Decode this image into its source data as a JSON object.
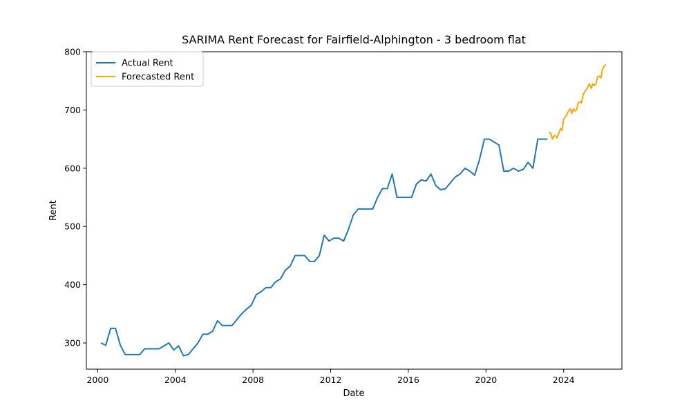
{
  "chart_data": {
    "type": "line",
    "title": "SARIMA Rent Forecast for Fairfield-Alphington - 3 bedroom flat",
    "xlabel": "Date",
    "ylabel": "Rent",
    "xlim": [
      "1999-06",
      "2027-01"
    ],
    "ylim": [
      255,
      800
    ],
    "xticks": [
      "2000",
      "2004",
      "2008",
      "2012",
      "2016",
      "2020",
      "2024"
    ],
    "yticks": [
      300,
      400,
      500,
      600,
      700,
      800
    ],
    "grid": false,
    "legend_position": "upper-left",
    "series": [
      {
        "name": "Actual Rent",
        "color": "#1f77b4",
        "points": [
          [
            "2000-03",
            300
          ],
          [
            "2000-06",
            296
          ],
          [
            "2000-09",
            325
          ],
          [
            "2000-12",
            325
          ],
          [
            "2001-03",
            296
          ],
          [
            "2001-06",
            280
          ],
          [
            "2001-09",
            280
          ],
          [
            "2001-12",
            280
          ],
          [
            "2002-03",
            280
          ],
          [
            "2002-06",
            290
          ],
          [
            "2002-09",
            290
          ],
          [
            "2002-12",
            290
          ],
          [
            "2003-03",
            290
          ],
          [
            "2003-06",
            295
          ],
          [
            "2003-09",
            300
          ],
          [
            "2003-12",
            288
          ],
          [
            "2004-03",
            295
          ],
          [
            "2004-06",
            278
          ],
          [
            "2004-09",
            280
          ],
          [
            "2004-12",
            290
          ],
          [
            "2005-03",
            300
          ],
          [
            "2005-06",
            315
          ],
          [
            "2005-09",
            315
          ],
          [
            "2005-12",
            320
          ],
          [
            "2006-03",
            338
          ],
          [
            "2006-06",
            330
          ],
          [
            "2006-09",
            330
          ],
          [
            "2006-12",
            330
          ],
          [
            "2007-03",
            340
          ],
          [
            "2007-06",
            350
          ],
          [
            "2007-09",
            358
          ],
          [
            "2007-12",
            365
          ],
          [
            "2008-03",
            383
          ],
          [
            "2008-06",
            388
          ],
          [
            "2008-09",
            395
          ],
          [
            "2008-12",
            395
          ],
          [
            "2009-03",
            405
          ],
          [
            "2009-06",
            410
          ],
          [
            "2009-09",
            425
          ],
          [
            "2009-12",
            432
          ],
          [
            "2010-03",
            450
          ],
          [
            "2010-06",
            450
          ],
          [
            "2010-09",
            450
          ],
          [
            "2010-12",
            440
          ],
          [
            "2011-03",
            440
          ],
          [
            "2011-06",
            450
          ],
          [
            "2011-09",
            485
          ],
          [
            "2011-12",
            475
          ],
          [
            "2012-03",
            480
          ],
          [
            "2012-06",
            480
          ],
          [
            "2012-09",
            475
          ],
          [
            "2012-12",
            495
          ],
          [
            "2013-03",
            520
          ],
          [
            "2013-06",
            530
          ],
          [
            "2013-09",
            530
          ],
          [
            "2013-12",
            530
          ],
          [
            "2014-03",
            530
          ],
          [
            "2014-06",
            550
          ],
          [
            "2014-09",
            565
          ],
          [
            "2014-12",
            565
          ],
          [
            "2015-03",
            590
          ],
          [
            "2015-06",
            550
          ],
          [
            "2015-09",
            550
          ],
          [
            "2015-12",
            550
          ],
          [
            "2016-03",
            550
          ],
          [
            "2016-06",
            573
          ],
          [
            "2016-09",
            580
          ],
          [
            "2016-12",
            578
          ],
          [
            "2017-03",
            590
          ],
          [
            "2017-06",
            570
          ],
          [
            "2017-09",
            563
          ],
          [
            "2017-12",
            565
          ],
          [
            "2018-03",
            575
          ],
          [
            "2018-06",
            585
          ],
          [
            "2018-09",
            590
          ],
          [
            "2018-12",
            600
          ],
          [
            "2019-03",
            595
          ],
          [
            "2019-06",
            588
          ],
          [
            "2019-09",
            615
          ],
          [
            "2019-12",
            650
          ],
          [
            "2020-03",
            650
          ],
          [
            "2020-06",
            645
          ],
          [
            "2020-09",
            640
          ],
          [
            "2020-12",
            595
          ],
          [
            "2021-03",
            595
          ],
          [
            "2021-06",
            600
          ],
          [
            "2021-09",
            595
          ],
          [
            "2021-12",
            598
          ],
          [
            "2022-03",
            610
          ],
          [
            "2022-06",
            600
          ],
          [
            "2022-09",
            650
          ],
          [
            "2022-12",
            650
          ],
          [
            "2023-03",
            650
          ]
        ]
      },
      {
        "name": "Forecasted Rent",
        "color": "#ffa500",
        "points": [
          [
            "2023-04",
            662
          ],
          [
            "2023-05",
            660
          ],
          [
            "2023-06",
            650
          ],
          [
            "2023-07",
            655
          ],
          [
            "2023-08",
            656
          ],
          [
            "2023-09",
            652
          ],
          [
            "2023-10",
            660
          ],
          [
            "2023-11",
            668
          ],
          [
            "2023-12",
            665
          ],
          [
            "2024-01",
            684
          ],
          [
            "2024-02",
            688
          ],
          [
            "2024-03",
            692
          ],
          [
            "2024-04",
            698
          ],
          [
            "2024-05",
            702
          ],
          [
            "2024-06",
            694
          ],
          [
            "2024-07",
            702
          ],
          [
            "2024-08",
            698
          ],
          [
            "2024-09",
            700
          ],
          [
            "2024-10",
            712
          ],
          [
            "2024-11",
            714
          ],
          [
            "2024-12",
            712
          ],
          [
            "2025-01",
            726
          ],
          [
            "2025-02",
            731
          ],
          [
            "2025-03",
            735
          ],
          [
            "2025-04",
            740
          ],
          [
            "2025-05",
            745
          ],
          [
            "2025-06",
            737
          ],
          [
            "2025-07",
            745
          ],
          [
            "2025-08",
            742
          ],
          [
            "2025-09",
            745
          ],
          [
            "2025-10",
            757
          ],
          [
            "2025-11",
            758
          ],
          [
            "2025-12",
            755
          ],
          [
            "2026-01",
            770
          ],
          [
            "2026-02",
            775
          ],
          [
            "2026-03",
            778
          ]
        ]
      }
    ]
  }
}
